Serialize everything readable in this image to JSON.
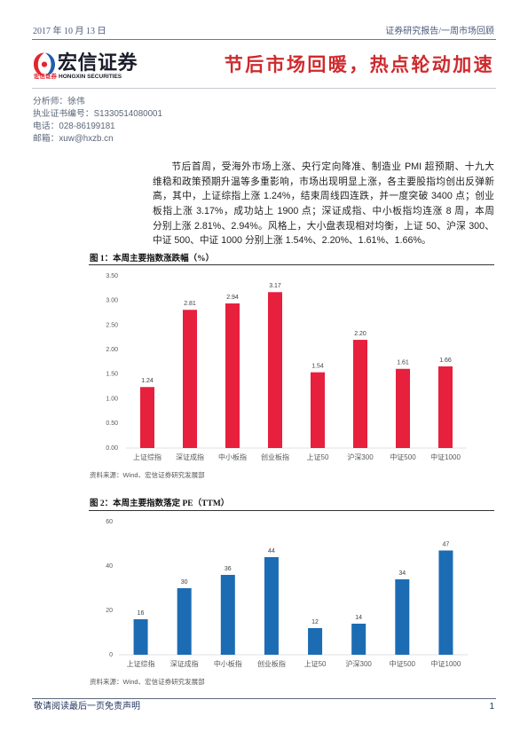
{
  "header": {
    "date": "2017 年 10 月 13 日",
    "report_type": "证券研究报告/一周市场回顾"
  },
  "brand": {
    "name": "宏信证券",
    "subtitle_cn": "宏信证券",
    "subtitle_en": "HONGXIN SECURITIES",
    "icon": "hongxin-logo-icon"
  },
  "colors": {
    "title": "#cf2a2d",
    "brand_red": "#e0262f",
    "brand_blue": "#1e5eab"
  },
  "title": "节后市场回暖，热点轮动加速",
  "analyst": {
    "name": "分析师：徐伟",
    "license": "执业证书编号：S1330514080001",
    "phone": "电话：028-86199181",
    "email": "邮箱：xuw@hxzb.cn"
  },
  "summary": {
    "lines": [
      "节后首周，受海外市场上涨、央行定向降准、制造业 PMI 超预期、十九大",
      "维稳和政策预期升温等多重影响，市场出现明显上涨，各主要股指均创出反弹新",
      "高，其中，上证综指上涨 1.24%，结束周线四连跌，并一度突破 3400 点；创业",
      "板指上涨 3.17%，成功站上 1900 点；深证成指、中小板指均连涨 8 周，本周",
      "分别上涨 2.81%、2.94%。风格上，大小盘表现相对均衡，上证 50、沪深 300、",
      "中证 500、中证 1000 分别上涨 1.54%、2.20%、1.61%、1.66%。"
    ]
  },
  "chart_data": [
    {
      "type": "bar",
      "title": "图 1：本周主要指数涨跌幅（%）",
      "categories": [
        "上证综指",
        "深证成指",
        "中小板指",
        "创业板指",
        "上证50",
        "沪深300",
        "中证500",
        "中证1000"
      ],
      "values": [
        1.24,
        2.81,
        2.94,
        3.17,
        1.54,
        2.2,
        1.61,
        1.66
      ],
      "data_labels": [
        "1.24",
        "2.81",
        "2.94",
        "3.17",
        "1.54",
        "2.20",
        "1.61",
        "1.66"
      ],
      "y_ticks": [
        "0.00",
        "0.50",
        "1.00",
        "1.50",
        "2.00",
        "2.50",
        "3.00",
        "3.50"
      ],
      "ylim": [
        0,
        3.5
      ],
      "grid": false,
      "color": "#e6203d",
      "source": "资料来源：Wind、宏信证券研究发展部"
    },
    {
      "type": "bar",
      "title": "图 2：本周主要指数落定 PE（TTM）",
      "categories": [
        "上证综指",
        "深证成指",
        "中小板指",
        "创业板指",
        "上证50",
        "沪深300",
        "中证500",
        "中证1000"
      ],
      "values": [
        16,
        30,
        36,
        44,
        12,
        14,
        34,
        47
      ],
      "data_labels": [
        "16",
        "30",
        "36",
        "44",
        "12",
        "14",
        "34",
        "47"
      ],
      "y_ticks": [
        "0",
        "20",
        "40",
        "60"
      ],
      "ylim": [
        0,
        60
      ],
      "grid": false,
      "color": "#1c6cb4",
      "source": "资料来源：Wind、宏信证券研究发展部"
    }
  ],
  "footer": {
    "disclaimer": "敬请阅读最后一页免责声明",
    "page_number": "1"
  }
}
